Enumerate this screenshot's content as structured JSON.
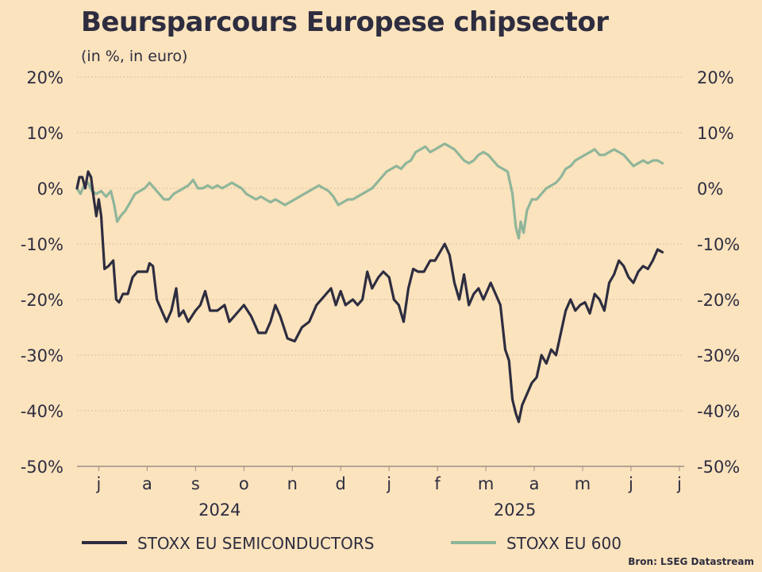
{
  "chart_data": {
    "type": "line",
    "title": "Beursparcours Europese chipsector",
    "subtitle": "(in %, in euro)",
    "source": "Bron: LSEG Datastream",
    "ylim": [
      -50,
      20
    ],
    "y_ticks": [
      20,
      10,
      0,
      -10,
      -20,
      -30,
      -40,
      -50
    ],
    "y_tick_labels": [
      "20%",
      "10%",
      "0%",
      "-10%",
      "-20%",
      "-30%",
      "-40%",
      "-50%"
    ],
    "x_tick_labels": [
      "j",
      "a",
      "s",
      "o",
      "n",
      "d",
      "j",
      "f",
      "m",
      "a",
      "m",
      "j",
      "j"
    ],
    "x_tick_months": [
      1,
      2,
      3,
      4,
      5,
      6,
      7,
      8,
      9,
      10,
      11,
      12,
      13
    ],
    "x_range": [
      0.55,
      13.1
    ],
    "year_labels": [
      {
        "label": "2024",
        "month": 3.5
      },
      {
        "label": "2025",
        "month": 9.6
      }
    ],
    "grid": true,
    "legend": "bottom",
    "series": [
      {
        "name": "STOXX EU SEMICONDUCTORS",
        "color": "#2e2d40",
        "points": [
          [
            0.55,
            0
          ],
          [
            0.6,
            2
          ],
          [
            0.66,
            2
          ],
          [
            0.72,
            0
          ],
          [
            0.78,
            3
          ],
          [
            0.84,
            2
          ],
          [
            0.9,
            -2
          ],
          [
            0.95,
            -5
          ],
          [
            1.0,
            -2
          ],
          [
            1.05,
            -5
          ],
          [
            1.12,
            -14.5
          ],
          [
            1.2,
            -14
          ],
          [
            1.3,
            -13
          ],
          [
            1.36,
            -20
          ],
          [
            1.42,
            -20.5
          ],
          [
            1.5,
            -19
          ],
          [
            1.6,
            -19
          ],
          [
            1.7,
            -16
          ],
          [
            1.8,
            -15
          ],
          [
            1.9,
            -15
          ],
          [
            2.0,
            -15
          ],
          [
            2.05,
            -13.5
          ],
          [
            2.12,
            -14
          ],
          [
            2.2,
            -20
          ],
          [
            2.3,
            -22
          ],
          [
            2.4,
            -24
          ],
          [
            2.5,
            -22
          ],
          [
            2.6,
            -18
          ],
          [
            2.66,
            -23
          ],
          [
            2.75,
            -22
          ],
          [
            2.85,
            -24
          ],
          [
            3.0,
            -22
          ],
          [
            3.1,
            -21
          ],
          [
            3.2,
            -18.5
          ],
          [
            3.3,
            -22
          ],
          [
            3.45,
            -22
          ],
          [
            3.6,
            -21
          ],
          [
            3.7,
            -24
          ],
          [
            3.85,
            -22.5
          ],
          [
            4.0,
            -21
          ],
          [
            4.15,
            -23
          ],
          [
            4.3,
            -26
          ],
          [
            4.45,
            -26
          ],
          [
            4.55,
            -24
          ],
          [
            4.65,
            -21
          ],
          [
            4.75,
            -23
          ],
          [
            4.9,
            -27
          ],
          [
            5.05,
            -27.5
          ],
          [
            5.2,
            -25
          ],
          [
            5.35,
            -24
          ],
          [
            5.5,
            -21
          ],
          [
            5.65,
            -19.5
          ],
          [
            5.8,
            -18
          ],
          [
            5.9,
            -21
          ],
          [
            6.0,
            -18.5
          ],
          [
            6.1,
            -21
          ],
          [
            6.25,
            -20
          ],
          [
            6.35,
            -21
          ],
          [
            6.45,
            -20
          ],
          [
            6.55,
            -15
          ],
          [
            6.65,
            -18
          ],
          [
            6.78,
            -16
          ],
          [
            6.88,
            -15
          ],
          [
            7.0,
            -16
          ],
          [
            7.1,
            -20
          ],
          [
            7.2,
            -21
          ],
          [
            7.3,
            -24
          ],
          [
            7.4,
            -18
          ],
          [
            7.5,
            -14.5
          ],
          [
            7.6,
            -15
          ],
          [
            7.72,
            -15
          ],
          [
            7.85,
            -13
          ],
          [
            7.95,
            -13
          ],
          [
            8.05,
            -11.5
          ],
          [
            8.15,
            -10
          ],
          [
            8.25,
            -12
          ],
          [
            8.35,
            -17
          ],
          [
            8.45,
            -20
          ],
          [
            8.55,
            -15.5
          ],
          [
            8.65,
            -21
          ],
          [
            8.75,
            -19
          ],
          [
            8.85,
            -18
          ],
          [
            8.95,
            -20
          ],
          [
            9.1,
            -17
          ],
          [
            9.2,
            -19
          ],
          [
            9.3,
            -21
          ],
          [
            9.4,
            -29
          ],
          [
            9.48,
            -31
          ],
          [
            9.55,
            -38
          ],
          [
            9.62,
            -40.5
          ],
          [
            9.68,
            -42
          ],
          [
            9.75,
            -39
          ],
          [
            9.85,
            -37
          ],
          [
            9.95,
            -35
          ],
          [
            10.05,
            -34
          ],
          [
            10.15,
            -30
          ],
          [
            10.25,
            -31.5
          ],
          [
            10.35,
            -29
          ],
          [
            10.45,
            -30
          ],
          [
            10.55,
            -26
          ],
          [
            10.65,
            -22
          ],
          [
            10.75,
            -20
          ],
          [
            10.85,
            -22
          ],
          [
            10.95,
            -21
          ],
          [
            11.05,
            -20.5
          ],
          [
            11.15,
            -22.5
          ],
          [
            11.25,
            -19
          ],
          [
            11.35,
            -20
          ],
          [
            11.45,
            -22
          ],
          [
            11.55,
            -17
          ],
          [
            11.65,
            -15.5
          ],
          [
            11.75,
            -13
          ],
          [
            11.85,
            -14
          ],
          [
            11.95,
            -16
          ],
          [
            12.05,
            -17
          ],
          [
            12.15,
            -15
          ],
          [
            12.25,
            -14
          ],
          [
            12.35,
            -14.5
          ],
          [
            12.45,
            -13
          ],
          [
            12.55,
            -11
          ],
          [
            12.65,
            -11.5
          ]
        ]
      },
      {
        "name": "STOXX EU 600",
        "color": "#8fb59a",
        "points": [
          [
            0.55,
            0
          ],
          [
            0.62,
            -1
          ],
          [
            0.7,
            0.5
          ],
          [
            0.78,
            1
          ],
          [
            0.86,
            -0.5
          ],
          [
            0.95,
            -1
          ],
          [
            1.05,
            -0.5
          ],
          [
            1.15,
            -1.5
          ],
          [
            1.25,
            -0.5
          ],
          [
            1.32,
            -3
          ],
          [
            1.38,
            -6
          ],
          [
            1.45,
            -5
          ],
          [
            1.55,
            -4
          ],
          [
            1.65,
            -2.5
          ],
          [
            1.75,
            -1
          ],
          [
            1.85,
            -0.5
          ],
          [
            1.95,
            0
          ],
          [
            2.05,
            1
          ],
          [
            2.15,
            0
          ],
          [
            2.25,
            -1
          ],
          [
            2.35,
            -2
          ],
          [
            2.45,
            -2
          ],
          [
            2.55,
            -1
          ],
          [
            2.65,
            -0.5
          ],
          [
            2.75,
            0
          ],
          [
            2.85,
            0.5
          ],
          [
            2.95,
            1.5
          ],
          [
            3.05,
            0
          ],
          [
            3.15,
            0
          ],
          [
            3.25,
            0.5
          ],
          [
            3.35,
            0
          ],
          [
            3.45,
            0.5
          ],
          [
            3.55,
            0
          ],
          [
            3.65,
            0.5
          ],
          [
            3.75,
            1
          ],
          [
            3.85,
            0.5
          ],
          [
            3.95,
            0
          ],
          [
            4.05,
            -1
          ],
          [
            4.15,
            -1.5
          ],
          [
            4.25,
            -2
          ],
          [
            4.35,
            -1.5
          ],
          [
            4.45,
            -2
          ],
          [
            4.55,
            -2.5
          ],
          [
            4.65,
            -2
          ],
          [
            4.75,
            -2.5
          ],
          [
            4.85,
            -3
          ],
          [
            4.95,
            -2.5
          ],
          [
            5.05,
            -2
          ],
          [
            5.15,
            -1.5
          ],
          [
            5.25,
            -1
          ],
          [
            5.35,
            -0.5
          ],
          [
            5.45,
            0
          ],
          [
            5.55,
            0.5
          ],
          [
            5.65,
            0
          ],
          [
            5.75,
            -0.5
          ],
          [
            5.85,
            -1.5
          ],
          [
            5.95,
            -3
          ],
          [
            6.05,
            -2.5
          ],
          [
            6.15,
            -2
          ],
          [
            6.25,
            -2
          ],
          [
            6.35,
            -1.5
          ],
          [
            6.45,
            -1
          ],
          [
            6.55,
            -0.5
          ],
          [
            6.65,
            0
          ],
          [
            6.75,
            1
          ],
          [
            6.85,
            2
          ],
          [
            6.95,
            3
          ],
          [
            7.05,
            3.5
          ],
          [
            7.15,
            4
          ],
          [
            7.25,
            3.5
          ],
          [
            7.35,
            4.5
          ],
          [
            7.45,
            5
          ],
          [
            7.55,
            6.5
          ],
          [
            7.65,
            7
          ],
          [
            7.75,
            7.5
          ],
          [
            7.85,
            6.5
          ],
          [
            7.95,
            7
          ],
          [
            8.05,
            7.5
          ],
          [
            8.15,
            8
          ],
          [
            8.25,
            7.5
          ],
          [
            8.35,
            7
          ],
          [
            8.45,
            6
          ],
          [
            8.55,
            5
          ],
          [
            8.65,
            4.5
          ],
          [
            8.75,
            5
          ],
          [
            8.85,
            6
          ],
          [
            8.95,
            6.5
          ],
          [
            9.05,
            6
          ],
          [
            9.15,
            5
          ],
          [
            9.25,
            4
          ],
          [
            9.35,
            3.5
          ],
          [
            9.45,
            3
          ],
          [
            9.55,
            -1
          ],
          [
            9.62,
            -7
          ],
          [
            9.68,
            -9
          ],
          [
            9.72,
            -6
          ],
          [
            9.78,
            -8
          ],
          [
            9.85,
            -4
          ],
          [
            9.95,
            -2
          ],
          [
            10.05,
            -2
          ],
          [
            10.15,
            -1
          ],
          [
            10.25,
            0
          ],
          [
            10.35,
            0.5
          ],
          [
            10.45,
            1
          ],
          [
            10.55,
            2
          ],
          [
            10.65,
            3.5
          ],
          [
            10.75,
            4
          ],
          [
            10.85,
            5
          ],
          [
            10.95,
            5.5
          ],
          [
            11.05,
            6
          ],
          [
            11.15,
            6.5
          ],
          [
            11.25,
            7
          ],
          [
            11.35,
            6
          ],
          [
            11.45,
            6
          ],
          [
            11.55,
            6.5
          ],
          [
            11.65,
            7
          ],
          [
            11.75,
            6.5
          ],
          [
            11.85,
            6
          ],
          [
            11.95,
            5
          ],
          [
            12.05,
            4
          ],
          [
            12.15,
            4.5
          ],
          [
            12.25,
            5
          ],
          [
            12.35,
            4.5
          ],
          [
            12.45,
            5
          ],
          [
            12.55,
            5
          ],
          [
            12.65,
            4.5
          ]
        ]
      }
    ]
  }
}
